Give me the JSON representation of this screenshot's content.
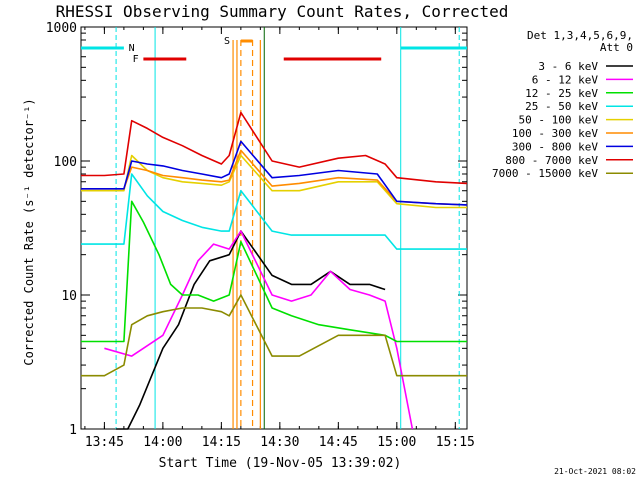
{
  "chart_data": {
    "type": "line",
    "title": "RHESSI Observing Summary Count Rates, Corrected",
    "ylabel": "Corrected Count Rate (s⁻¹ detector⁻¹)",
    "xlabel": "Start Time (19-Nov-05 13:39:02)",
    "yscale": "log",
    "ylim": [
      1,
      1000
    ],
    "xlim": [
      "13:39",
      "15:18"
    ],
    "y_ticks": [
      "1",
      "10",
      "100",
      "1000"
    ],
    "x_ticks": [
      "13:45",
      "14:00",
      "14:15",
      "14:30",
      "14:45",
      "15:00",
      "15:15"
    ],
    "footer": "21-Oct-2021 08:02",
    "legend": {
      "header": "Det 1,3,4,5,6,9,",
      "header2": "Att 0",
      "position": "right"
    },
    "flags": [
      {
        "label": "N",
        "color": "#00e5e5"
      },
      {
        "label": "F",
        "color": "#e00000"
      },
      {
        "label": "S",
        "color": "#ff8c00"
      }
    ],
    "series": [
      {
        "name": "3 - 6 keV",
        "color": "#000000",
        "x": [
          "13:48",
          "13:51",
          "13:54",
          "14:00",
          "14:04",
          "14:08",
          "14:12",
          "14:17",
          "14:20",
          "14:28",
          "14:33",
          "14:38",
          "14:43",
          "14:48",
          "14:53",
          "14:57"
        ],
        "y": [
          1,
          1,
          1.5,
          4,
          6,
          12,
          18,
          20,
          30,
          14,
          12,
          12,
          15,
          12,
          12,
          11
        ]
      },
      {
        "name": "6 - 12 keV",
        "color": "#ff00ff",
        "x": [
          "13:45",
          "13:52",
          "13:55",
          "14:00",
          "14:05",
          "14:09",
          "14:13",
          "14:17",
          "14:20",
          "14:28",
          "14:33",
          "14:38",
          "14:43",
          "14:48",
          "14:53",
          "14:57",
          "15:00",
          "15:04"
        ],
        "y": [
          4,
          3.5,
          4,
          5,
          10,
          18,
          24,
          22,
          30,
          10,
          9,
          10,
          15,
          11,
          10,
          9,
          4,
          1
        ]
      },
      {
        "name": "12 - 25 keV",
        "color": "#00e000",
        "x": [
          "13:39",
          "13:50",
          "13:52",
          "13:55",
          "13:59",
          "14:02",
          "14:05",
          "14:09",
          "14:13",
          "14:17",
          "14:20",
          "14:28",
          "14:33",
          "14:40",
          "14:48",
          "14:57",
          "15:00",
          "15:10",
          "15:18"
        ],
        "y": [
          4.5,
          4.5,
          50,
          35,
          20,
          12,
          10,
          10,
          9,
          10,
          25,
          8,
          7,
          6,
          5.5,
          5,
          4.5,
          4.5,
          4.5
        ]
      },
      {
        "name": "25 - 50 keV",
        "color": "#00e5e5",
        "x": [
          "13:39",
          "13:45",
          "13:50",
          "13:52",
          "13:56",
          "14:00",
          "14:05",
          "14:10",
          "14:15",
          "14:17",
          "14:20",
          "14:28",
          "14:33",
          "14:40",
          "14:48",
          "14:57",
          "15:00",
          "15:10",
          "15:18"
        ],
        "y": [
          24,
          24,
          24,
          80,
          55,
          42,
          36,
          32,
          30,
          30,
          60,
          30,
          28,
          28,
          28,
          28,
          22,
          22,
          22
        ]
      },
      {
        "name": "50 - 100 keV",
        "color": "#e5d000",
        "x": [
          "13:39",
          "13:50",
          "13:52",
          "13:56",
          "14:00",
          "14:05",
          "14:10",
          "14:15",
          "14:17",
          "14:20",
          "14:28",
          "14:35",
          "14:45",
          "14:55",
          "15:00",
          "15:10",
          "15:18"
        ],
        "y": [
          60,
          60,
          110,
          85,
          75,
          70,
          68,
          66,
          70,
          110,
          60,
          60,
          70,
          70,
          48,
          45,
          45
        ]
      },
      {
        "name": "100 - 300 keV",
        "color": "#ff8c00",
        "x": [
          "13:39",
          "13:50",
          "13:52",
          "13:56",
          "14:00",
          "14:05",
          "14:10",
          "14:15",
          "14:17",
          "14:20",
          "14:28",
          "14:35",
          "14:45",
          "14:55",
          "15:00",
          "15:10",
          "15:18"
        ],
        "y": [
          62,
          62,
          90,
          85,
          78,
          75,
          72,
          70,
          72,
          120,
          65,
          68,
          75,
          72,
          50,
          48,
          47
        ]
      },
      {
        "name": "300 - 800 keV",
        "color": "#0000e0",
        "x": [
          "13:39",
          "13:50",
          "13:52",
          "13:56",
          "14:00",
          "14:05",
          "14:10",
          "14:15",
          "14:17",
          "14:20",
          "14:28",
          "14:35",
          "14:45",
          "14:55",
          "15:00",
          "15:10",
          "15:18"
        ],
        "y": [
          62,
          62,
          100,
          95,
          92,
          85,
          80,
          75,
          80,
          140,
          75,
          78,
          85,
          80,
          50,
          48,
          47
        ]
      },
      {
        "name": "800 - 7000 keV",
        "color": "#e00000",
        "x": [
          "13:39",
          "13:45",
          "13:50",
          "13:52",
          "13:56",
          "14:00",
          "14:05",
          "14:10",
          "14:15",
          "14:17",
          "14:20",
          "14:28",
          "14:35",
          "14:45",
          "14:52",
          "14:57",
          "15:00",
          "15:10",
          "15:18"
        ],
        "y": [
          78,
          78,
          80,
          200,
          175,
          150,
          130,
          110,
          95,
          110,
          230,
          100,
          90,
          105,
          110,
          95,
          75,
          70,
          68
        ]
      },
      {
        "name": "7000 - 15000 keV",
        "color": "#8b8b00",
        "x": [
          "13:39",
          "13:45",
          "13:50",
          "13:52",
          "13:56",
          "14:00",
          "14:05",
          "14:10",
          "14:15",
          "14:17",
          "14:20",
          "14:28",
          "14:35",
          "14:45",
          "14:52",
          "14:57",
          "15:00",
          "15:10",
          "15:18"
        ],
        "y": [
          2.5,
          2.5,
          3,
          6,
          7,
          7.5,
          8,
          8,
          7.5,
          7,
          10,
          3.5,
          3.5,
          5,
          5,
          5,
          2.5,
          2.5,
          2.5
        ]
      }
    ]
  }
}
